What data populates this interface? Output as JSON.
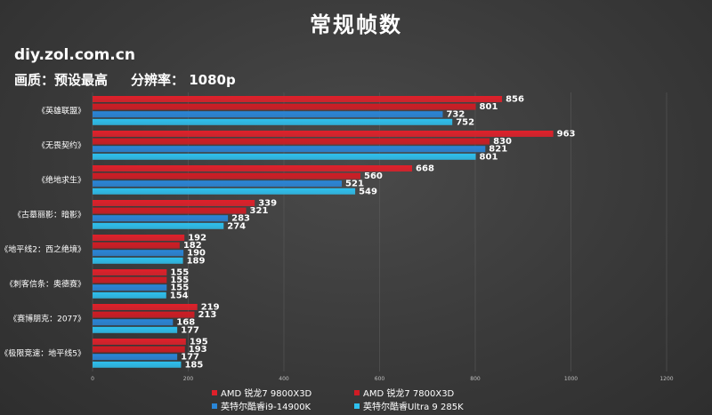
{
  "header": {
    "watermark": "diy.zol.com.cn",
    "quality_label": "画质：预设最高",
    "resolution_label": "分辨率： 1080p"
  },
  "chart_data": {
    "type": "bar",
    "orientation": "horizontal",
    "title": "常规帧数",
    "xlabel": "",
    "ylabel": "",
    "xlim": [
      0,
      1200
    ],
    "x_ticks": [
      0,
      200,
      400,
      600,
      800,
      1000,
      1200
    ],
    "grid": true,
    "legend_position": "bottom",
    "categories": [
      "《英雄联盟》",
      "《无畏契约》",
      "《绝地求生》",
      "《古墓丽影：暗影》",
      "《地平线2：西之绝境》",
      "《刺客信条：奥德赛》",
      "《赛博朋克：2077》",
      "《极限竞速：地平线5》"
    ],
    "series": [
      {
        "name": "AMD 锐龙7 9800X3D",
        "color": "#e0202a",
        "values": [
          856,
          963,
          668,
          339,
          192,
          155,
          219,
          195
        ]
      },
      {
        "name": "AMD 锐龙7 7800X3D",
        "color": "#d01c24",
        "values": [
          801,
          830,
          560,
          321,
          182,
          155,
          213,
          193
        ]
      },
      {
        "name": "英特尔酷睿i9-14900K",
        "color": "#2a86d8",
        "values": [
          732,
          821,
          521,
          283,
          190,
          155,
          168,
          177
        ]
      },
      {
        "name": "英特尔酷睿Ultra 9 285K",
        "color": "#2ec0ee",
        "values": [
          752,
          801,
          549,
          274,
          189,
          154,
          177,
          185
        ]
      }
    ]
  }
}
